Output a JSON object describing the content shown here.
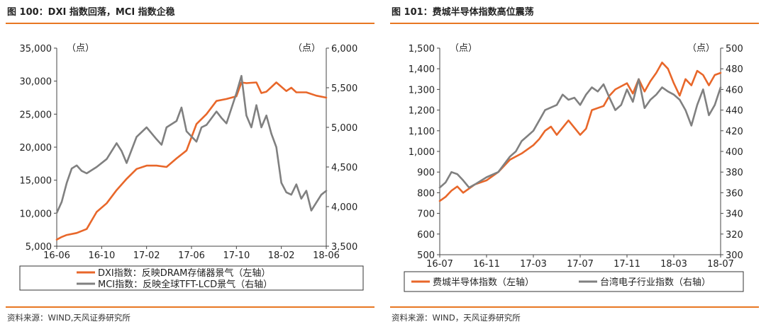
{
  "colors": {
    "orange": "#e8672a",
    "gray": "#808080",
    "accent": "#e87722"
  },
  "chart_data": [
    {
      "type": "line",
      "title": "图 100：DXI 指数回落，MCI 指数企稳",
      "source": "资料来源：WIND,天风证券研究所",
      "unit_left": "（点）",
      "unit_right": "（点）",
      "x_ticks": [
        "16-06",
        "16-10",
        "17-02",
        "17-06",
        "17-10",
        "18-02",
        "18-06"
      ],
      "x_range": [
        0,
        27
      ],
      "y_left": {
        "min": 5000,
        "max": 35000,
        "ticks": [
          "5,000",
          "10,000",
          "15,000",
          "20,000",
          "25,000",
          "30,000",
          "35,000"
        ],
        "values": [
          5000,
          10000,
          15000,
          20000,
          25000,
          30000,
          35000
        ]
      },
      "y_right": {
        "min": 3500,
        "max": 6000,
        "ticks": [
          "3,500",
          "4,000",
          "4,500",
          "5,000",
          "5,500",
          "6,000"
        ],
        "values": [
          3500,
          4000,
          4500,
          5000,
          5500,
          6000
        ]
      },
      "legend_box": true,
      "series": [
        {
          "name": "DXI指数：反映DRAM存储器景气（左轴）",
          "axis": "left",
          "color": "orange",
          "x": [
            0,
            0.5,
            1,
            2,
            3,
            4,
            5,
            6,
            7,
            8,
            9,
            10,
            11,
            12,
            13,
            13.5,
            14,
            15,
            16,
            17,
            18,
            18.5,
            19,
            20,
            20.5,
            21,
            22,
            23,
            23.5,
            24,
            25,
            26,
            27
          ],
          "values": [
            6000,
            6400,
            6700,
            7000,
            7600,
            10200,
            11500,
            13500,
            15200,
            16700,
            17200,
            17200,
            17000,
            18300,
            19500,
            21500,
            23500,
            25000,
            27000,
            27300,
            27700,
            29800,
            29700,
            29800,
            28200,
            28400,
            29800,
            28500,
            29000,
            28300,
            28300,
            27800,
            27500
          ]
        },
        {
          "name": "MCI指数：反映全球TFT-LCD景气（右轴）",
          "axis": "right",
          "color": "gray",
          "x": [
            0,
            0.5,
            1,
            1.5,
            2,
            2.5,
            3,
            4,
            5,
            6,
            6.5,
            7,
            8,
            9,
            10,
            10.5,
            11,
            12,
            12.5,
            13,
            14,
            14.5,
            15,
            16,
            16.5,
            17,
            18,
            18.5,
            19,
            19.5,
            20,
            20.5,
            21,
            21.5,
            22,
            22.5,
            23,
            23.5,
            24,
            24.5,
            25,
            25.5,
            26,
            26.5,
            27
          ],
          "values": [
            3920,
            4060,
            4300,
            4480,
            4520,
            4450,
            4420,
            4500,
            4600,
            4800,
            4700,
            4550,
            4880,
            5000,
            4850,
            4780,
            5000,
            5080,
            5250,
            4950,
            4820,
            5000,
            5030,
            5200,
            5120,
            5050,
            5430,
            5650,
            5150,
            5000,
            5280,
            5000,
            5150,
            4920,
            4750,
            4300,
            4180,
            4150,
            4280,
            4100,
            4200,
            3950,
            4050,
            4150,
            4200
          ]
        }
      ]
    },
    {
      "type": "line",
      "title": "图 101：费城半导体指数高位震荡",
      "source": "资料来源：WIND，天风证券研究所",
      "unit_left": "（点）",
      "unit_right": "（点）",
      "x_ticks": [
        "16-07",
        "16-11",
        "17-03",
        "17-07",
        "17-11",
        "18-03",
        "18-07"
      ],
      "x_range": [
        0,
        24
      ],
      "y_left": {
        "min": 500,
        "max": 1500,
        "ticks": [
          "500",
          "600",
          "700",
          "800",
          "900",
          "1,000",
          "1,100",
          "1,200",
          "1,300",
          "1,400",
          "1,500"
        ],
        "values": [
          500,
          600,
          700,
          800,
          900,
          1000,
          1100,
          1200,
          1300,
          1400,
          1500
        ]
      },
      "y_right": {
        "min": 300,
        "max": 500,
        "ticks": [
          "300",
          "320",
          "340",
          "360",
          "380",
          "400",
          "420",
          "440",
          "460",
          "480",
          "500"
        ],
        "values": [
          300,
          320,
          340,
          360,
          380,
          400,
          420,
          440,
          460,
          480,
          500
        ]
      },
      "legend_box": true,
      "series": [
        {
          "name": "费城半导体指数（左轴）",
          "axis": "left",
          "color": "orange",
          "x": [
            0,
            0.5,
            1,
            1.5,
            2,
            3,
            4,
            5,
            6,
            7,
            8,
            8.5,
            9,
            9.5,
            10,
            11,
            12,
            12.5,
            13,
            14,
            14.5,
            15,
            16,
            16.5,
            17,
            17.5,
            18,
            18.5,
            19,
            19.5,
            20,
            20.5,
            21,
            21.5,
            22,
            22.5,
            23,
            23.5,
            24
          ],
          "values": [
            760,
            780,
            810,
            830,
            800,
            840,
            860,
            900,
            960,
            990,
            1030,
            1060,
            1100,
            1120,
            1080,
            1150,
            1080,
            1110,
            1200,
            1220,
            1270,
            1300,
            1330,
            1280,
            1350,
            1290,
            1340,
            1380,
            1430,
            1400,
            1330,
            1270,
            1350,
            1320,
            1390,
            1370,
            1320,
            1370,
            1380
          ]
        },
        {
          "name": "台湾电子行业指数（右轴）",
          "axis": "right",
          "color": "gray",
          "x": [
            0,
            0.5,
            1,
            1.5,
            2,
            2.5,
            3,
            4,
            5,
            6,
            6.5,
            7,
            7.5,
            8,
            8.5,
            9,
            10,
            10.5,
            11,
            11.5,
            12,
            12.5,
            13,
            13.5,
            14,
            14.5,
            15,
            15.5,
            16,
            16.5,
            17,
            17.5,
            18,
            18.5,
            19,
            19.5,
            20,
            20.5,
            21,
            21.5,
            22,
            22.5,
            23,
            23.5,
            24
          ],
          "values": [
            365,
            370,
            380,
            378,
            372,
            365,
            368,
            375,
            380,
            395,
            400,
            410,
            415,
            420,
            430,
            440,
            445,
            455,
            450,
            452,
            445,
            455,
            462,
            458,
            465,
            452,
            440,
            445,
            460,
            448,
            470,
            442,
            450,
            455,
            462,
            458,
            455,
            450,
            440,
            425,
            445,
            460,
            435,
            445,
            462
          ]
        }
      ]
    }
  ]
}
